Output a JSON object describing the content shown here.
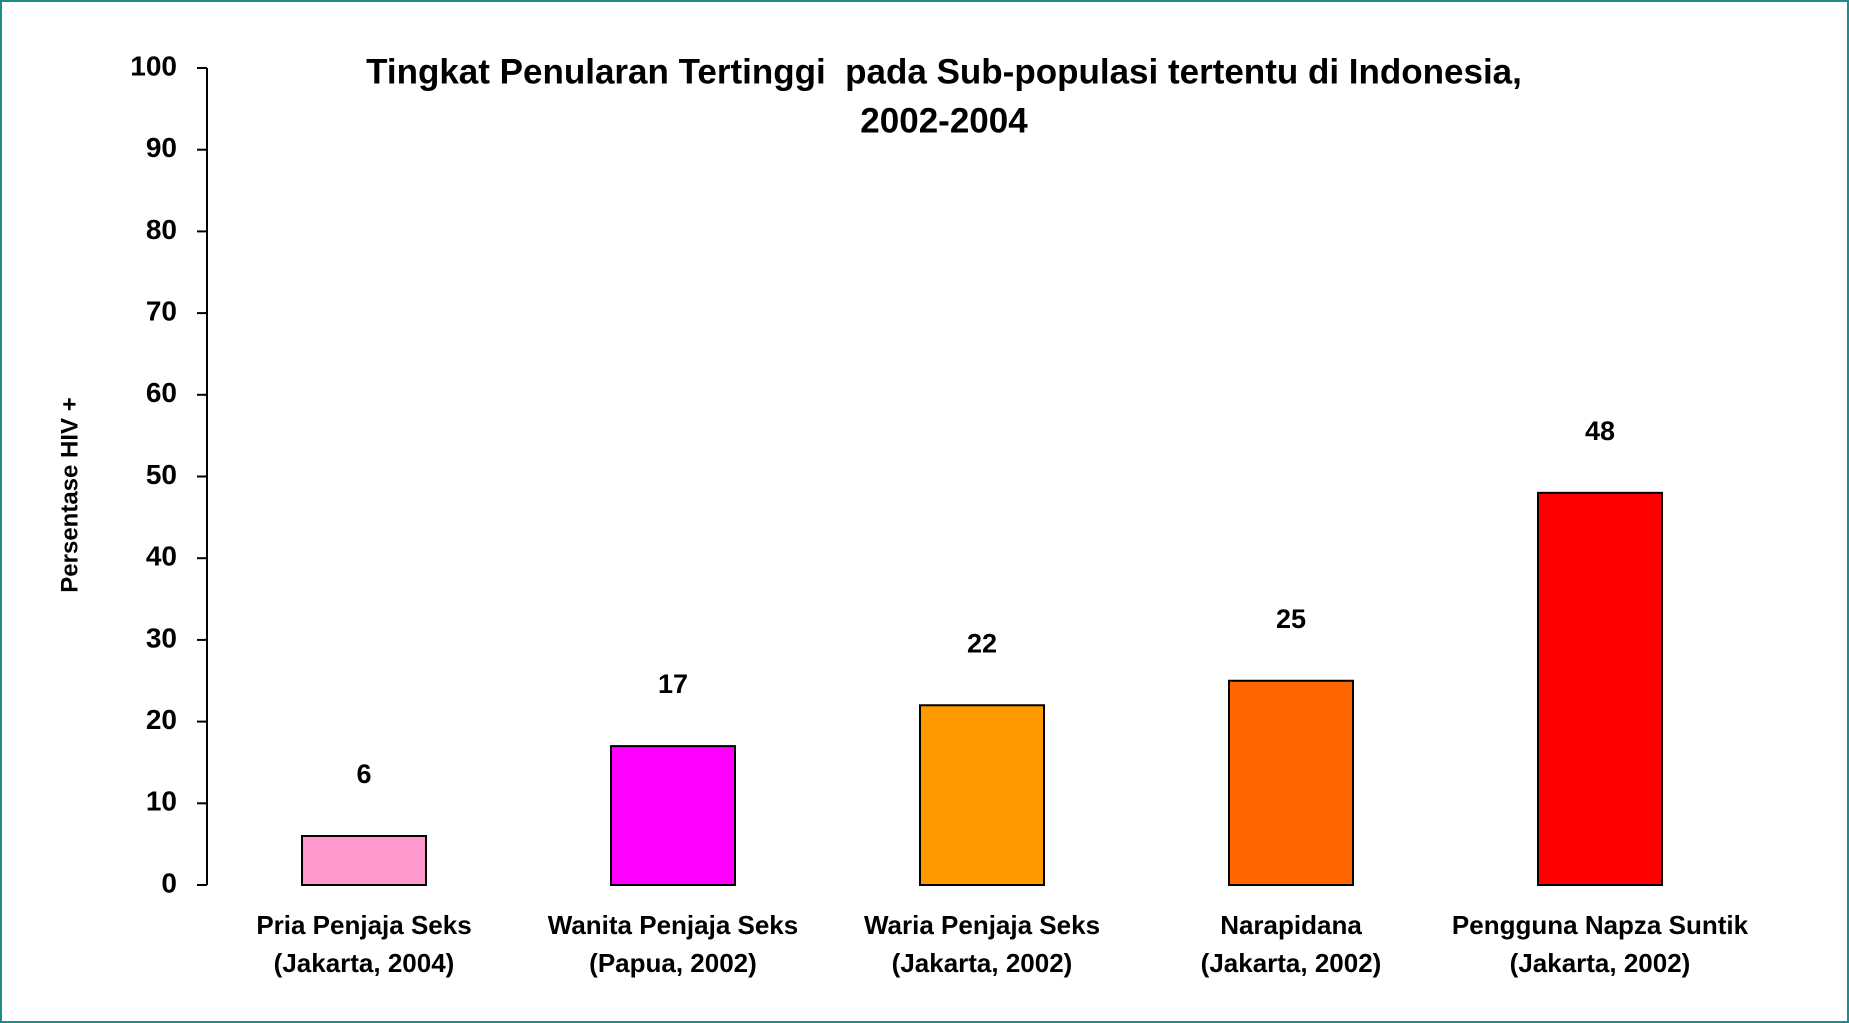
{
  "chart_data": {
    "type": "bar",
    "title": [
      "Tingkat Penularan Tertinggi  pada Sub-populasi tertentu di Indonesia,",
      "2002-2004"
    ],
    "y_label": "Persentase HIV +",
    "categories": [
      [
        "Pria Penjaja Seks",
        "(Jakarta, 2004)"
      ],
      [
        "Wanita Penjaja Seks",
        "(Papua, 2002)"
      ],
      [
        "Waria Penjaja Seks",
        "(Jakarta, 2002)"
      ],
      [
        "Narapidana",
        "(Jakarta, 2002)"
      ],
      [
        "Pengguna Napza Suntik",
        "(Jakarta, 2002)"
      ]
    ],
    "values": [
      6,
      17,
      22,
      25,
      48
    ],
    "colors": [
      "#ff99cc",
      "#ff00ff",
      "#ff9900",
      "#ff6600",
      "#ff0000"
    ],
    "ylim": [
      0,
      100
    ],
    "yticks": [
      0,
      10,
      20,
      30,
      40,
      50,
      60,
      70,
      80,
      90,
      100
    ],
    "grid": false
  }
}
